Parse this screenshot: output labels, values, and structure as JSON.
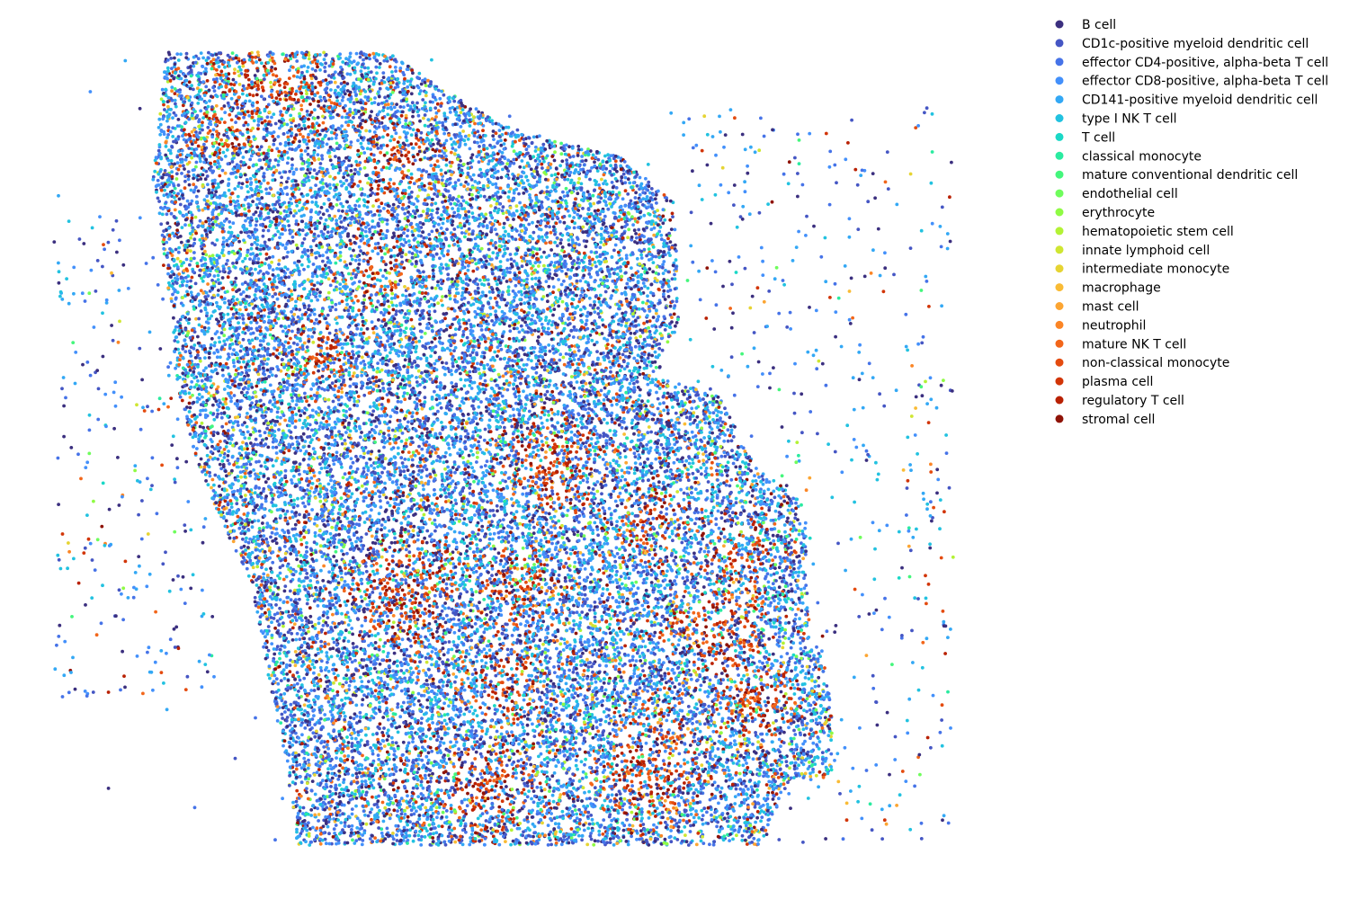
{
  "chart_data": {
    "type": "scatter",
    "title": "",
    "xlabel": "",
    "ylabel": "",
    "axes_visible": false,
    "grid": false,
    "legend_position": "right, outside plot",
    "series": [
      {
        "name": "B cell",
        "color": "#3b2f7f"
      },
      {
        "name": "CD1c-positive myeloid dendritic cell",
        "color": "#4556c4"
      },
      {
        "name": "effector CD4-positive, alpha-beta T cell",
        "color": "#4673e8"
      },
      {
        "name": "effector CD8-positive, alpha-beta T cell",
        "color": "#4390fb"
      },
      {
        "name": "CD141-positive myeloid dendritic cell",
        "color": "#33a8f5"
      },
      {
        "name": "type I NK T cell",
        "color": "#22c2e0"
      },
      {
        "name": "T cell",
        "color": "#1ad8c6"
      },
      {
        "name": "classical monocyte",
        "color": "#2aeba0"
      },
      {
        "name": "mature conventional dendritic cell",
        "color": "#44f67c"
      },
      {
        "name": "endothelial cell",
        "color": "#6ffd5c"
      },
      {
        "name": "erythrocyte",
        "color": "#8ffb44"
      },
      {
        "name": "hematopoietic stem cell",
        "color": "#b3f235"
      },
      {
        "name": "innate lymphoid cell",
        "color": "#cfe632"
      },
      {
        "name": "intermediate monocyte",
        "color": "#e6d433"
      },
      {
        "name": "macrophage",
        "color": "#f9bb35"
      },
      {
        "name": "mast cell",
        "color": "#fca532"
      },
      {
        "name": "neutrophil",
        "color": "#fb8525"
      },
      {
        "name": "mature NK T cell",
        "color": "#f2661a"
      },
      {
        "name": "non-classical monocyte",
        "color": "#e44b0f"
      },
      {
        "name": "plasma cell",
        "color": "#d23507"
      },
      {
        "name": "regulatory T cell",
        "color": "#b92103"
      },
      {
        "name": "stromal cell",
        "color": "#8f1307"
      }
    ]
  }
}
